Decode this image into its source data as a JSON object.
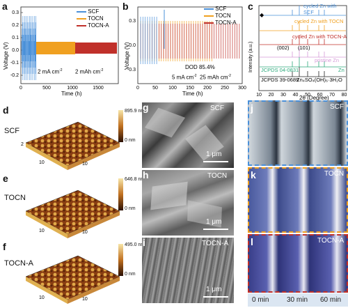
{
  "panels": {
    "a": {
      "label": "a",
      "ylabel": "Voltage (V)",
      "xlabel": "Time (h)",
      "yticks": [
        "0.3",
        "0.2",
        "0.1",
        "0.0",
        "-0.1",
        "-0.2"
      ],
      "xticks": [
        "0",
        "500",
        "1000",
        "1500"
      ],
      "legend": [
        "SCF",
        "TOCN",
        "TOCN-A"
      ],
      "annotation_1": "2 mA cm",
      "annotation_1_sup": "-2",
      "annotation_2": "2 mAh cm",
      "annotation_2_sup": "-2"
    },
    "b": {
      "label": "b",
      "ylabel": "Voltage (V)",
      "xlabel": "Time (h)",
      "yticks": [
        "0.3",
        "0.0",
        "-0.3"
      ],
      "xticks": [
        "0",
        "50",
        "100",
        "150",
        "200",
        "250",
        "300"
      ],
      "legend": [
        "SCF",
        "TOCN",
        "TOCN-A"
      ],
      "dod": "DOD 85.4%",
      "cond_1": "5 mA cm",
      "cond_1_sup": "-2",
      "cond_2": "25 mAh cm",
      "cond_2_sup": "-2"
    },
    "c": {
      "label": "c",
      "ylabel": "Intensity (a.u.)",
      "xlabel": "2θ (Degree)",
      "xticks": [
        "10",
        "20",
        "30",
        "40",
        "50",
        "60",
        "70",
        "80"
      ],
      "traces": [
        {
          "label": "cycled Zn with SCF",
          "color": "#4a90d9"
        },
        {
          "label": "cycled Zn with TOCN",
          "color": "#f0a020"
        },
        {
          "label": "cycled Zn with TOCN-A",
          "color": "#c0302a"
        },
        {
          "label": "pristine Zn",
          "color": "#d59ad8"
        },
        {
          "label": "JCPDS 04-0831",
          "color": "#2aa87a"
        },
        {
          "label": "JCPDS 39-0689",
          "color": "#222222"
        }
      ],
      "zn_label": "Zn",
      "formula": "Zn₄SO₄(OH)₆·3H₂O",
      "peak_002": "(002)",
      "peak_101": "(101)",
      "marker": "◆"
    },
    "d": {
      "label": "d",
      "name": "SCF",
      "height_max": "895.9 nm",
      "height_min": "0 nm"
    },
    "e": {
      "label": "e",
      "name": "TOCN",
      "height_max": "646.8 nm",
      "height_min": "0 nm"
    },
    "f": {
      "label": "f",
      "name": "TOCN-A",
      "height_max": "495.0 nm",
      "height_min": "0 nm"
    },
    "afm_axis_ticks": [
      "10",
      "8",
      "6",
      "4",
      "2",
      "0",
      "2",
      "4",
      "6",
      "8",
      "10"
    ],
    "g": {
      "label": "g",
      "name": "SCF",
      "scale": "1 μm"
    },
    "h": {
      "label": "h",
      "name": "TOCN",
      "scale": "1 μm"
    },
    "i": {
      "label": "i",
      "name": "TOCN-A",
      "scale": "1 μm"
    },
    "j": {
      "label": "j",
      "name": "SCF",
      "frame_color": "#4a90d9"
    },
    "k": {
      "label": "k",
      "name": "TOCN",
      "frame_color": "#f0a020"
    },
    "l": {
      "label": "l",
      "name": "TOCN-A",
      "frame_color": "#c0302a"
    },
    "times": [
      "0 min",
      "30 min",
      "60 min"
    ]
  },
  "colors": {
    "scf": "#4a90d9",
    "tocn": "#f0a020",
    "tocna": "#c0302a"
  }
}
